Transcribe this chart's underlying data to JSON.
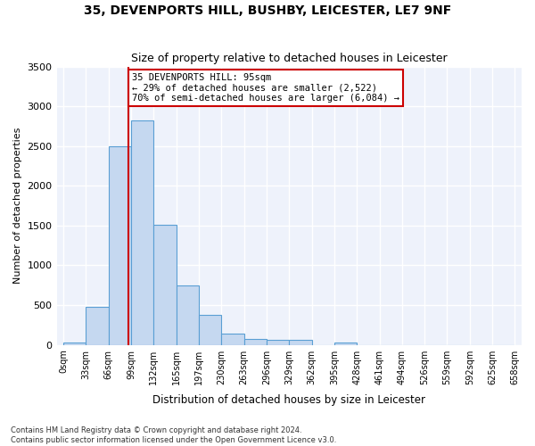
{
  "title1": "35, DEVENPORTS HILL, BUSHBY, LEICESTER, LE7 9NF",
  "title2": "Size of property relative to detached houses in Leicester",
  "xlabel": "Distribution of detached houses by size in Leicester",
  "ylabel": "Number of detached properties",
  "bar_color": "#c5d8f0",
  "bar_edge_color": "#5a9fd4",
  "bg_color": "#eef2fb",
  "grid_color": "#ffffff",
  "annotation_box_color": "#cc0000",
  "vline_color": "#cc0000",
  "annotation_line1": "35 DEVENPORTS HILL: 95sqm",
  "annotation_line2": "← 29% of detached houses are smaller (2,522)",
  "annotation_line3": "70% of semi-detached houses are larger (6,084) →",
  "footer1": "Contains HM Land Registry data © Crown copyright and database right 2024.",
  "footer2": "Contains public sector information licensed under the Open Government Licence v3.0.",
  "bin_labels": [
    "0sqm",
    "33sqm",
    "66sqm",
    "99sqm",
    "132sqm",
    "165sqm",
    "197sqm",
    "230sqm",
    "263sqm",
    "296sqm",
    "329sqm",
    "362sqm",
    "395sqm",
    "428sqm",
    "461sqm",
    "494sqm",
    "526sqm",
    "559sqm",
    "592sqm",
    "625sqm",
    "658sqm"
  ],
  "bar_heights": [
    25,
    480,
    2500,
    2820,
    1510,
    750,
    380,
    140,
    70,
    60,
    60,
    0,
    30,
    0,
    0,
    0,
    0,
    0,
    0,
    0
  ],
  "ylim": [
    0,
    3500
  ],
  "yticks": [
    0,
    500,
    1000,
    1500,
    2000,
    2500,
    3000,
    3500
  ],
  "vline_x": 2.88
}
